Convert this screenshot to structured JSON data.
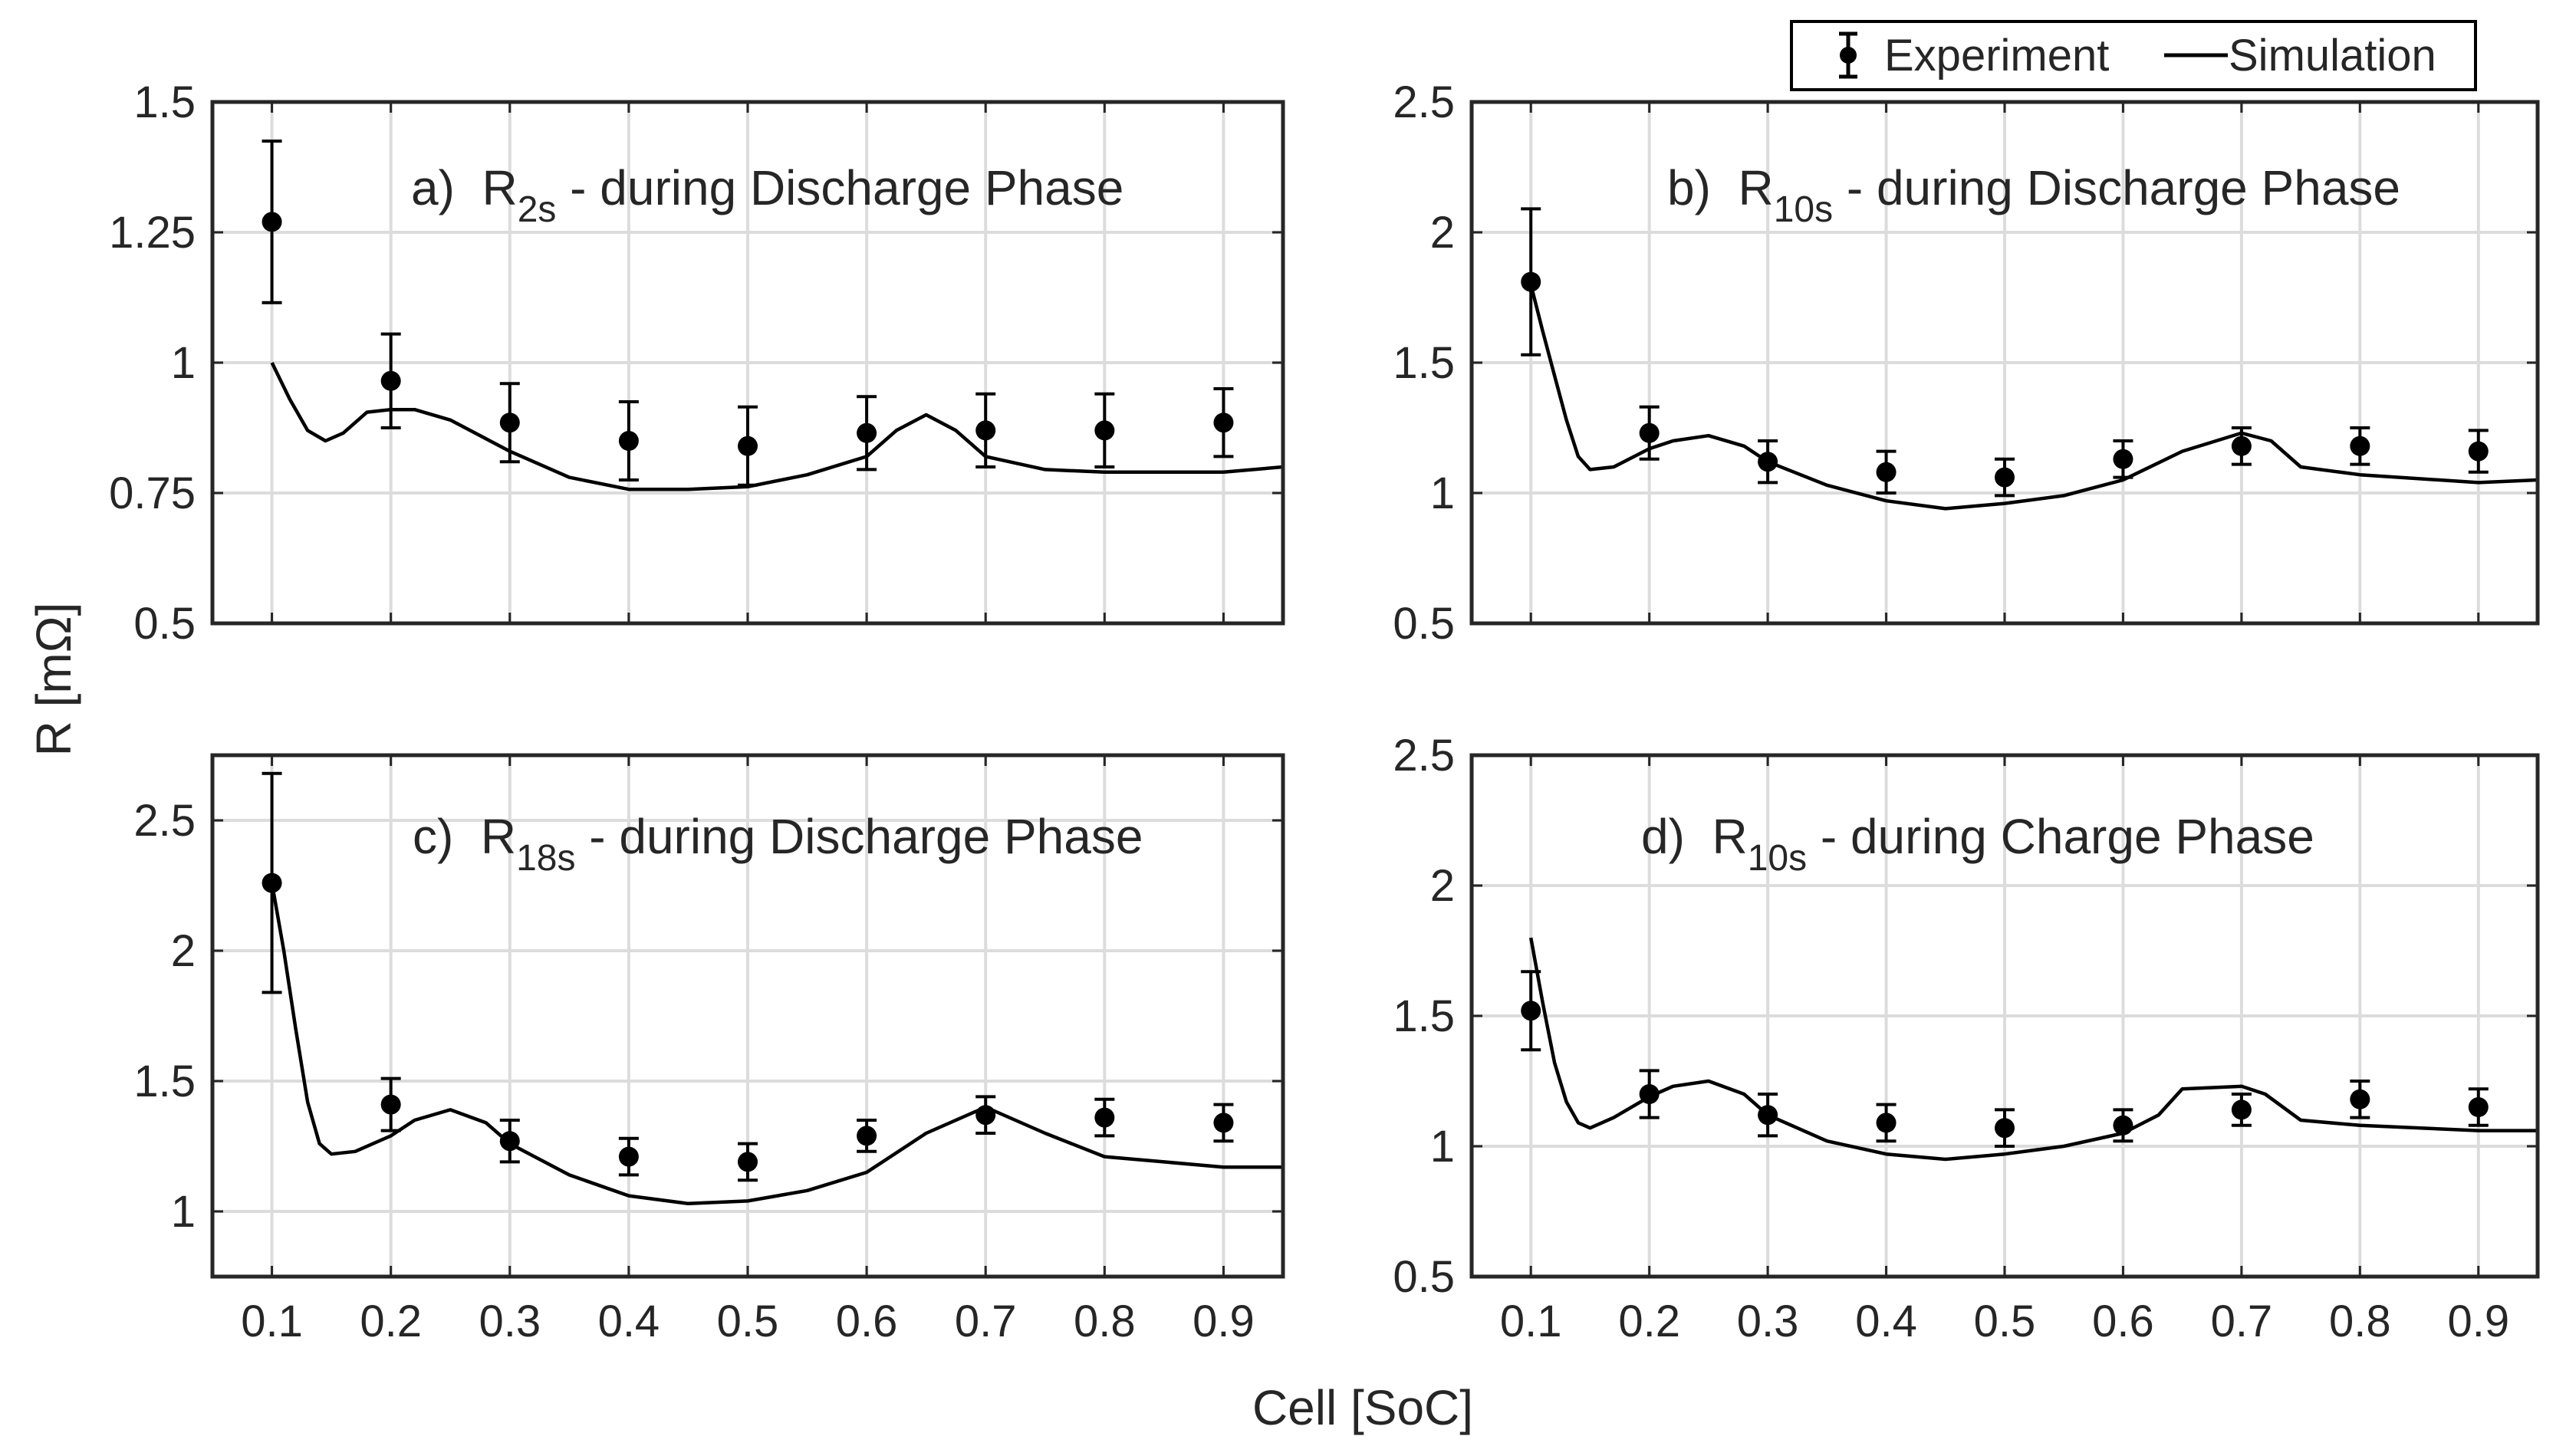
{
  "figure": {
    "y_axis_label": "R [mΩ]",
    "x_axis_label": "Cell [SoC]"
  },
  "legend": {
    "experiment_label": "Experiment",
    "simulation_label": "Simulation"
  },
  "chart_data": [
    {
      "type": "line",
      "id": "a",
      "title": "a)  R2s - during Discharge Phase",
      "title_prefix": "a)",
      "title_symbol": "R",
      "title_subscript": "2s",
      "title_suffix": "- during Discharge Phase",
      "xlim": [
        0.05,
        0.95
      ],
      "ylim": [
        0.5,
        1.5
      ],
      "xticks": [
        0.1,
        0.2,
        0.3,
        0.4,
        0.5,
        0.6,
        0.7,
        0.8,
        0.9
      ],
      "xtick_labels": [],
      "yticks": [
        0.5,
        0.75,
        1,
        1.25,
        1.5
      ],
      "ytick_labels": [
        "0.5",
        "0.75",
        "1",
        "1.25",
        "1.5"
      ],
      "series": [
        {
          "name": "Experiment",
          "x": [
            0.1,
            0.2,
            0.3,
            0.4,
            0.5,
            0.6,
            0.7,
            0.8,
            0.9
          ],
          "y": [
            1.27,
            0.965,
            0.885,
            0.85,
            0.84,
            0.865,
            0.87,
            0.87,
            0.885
          ],
          "err": [
            0.155,
            0.09,
            0.075,
            0.075,
            0.075,
            0.07,
            0.07,
            0.07,
            0.065
          ]
        },
        {
          "name": "Simulation",
          "x": [
            0.1,
            0.115,
            0.13,
            0.145,
            0.16,
            0.18,
            0.2,
            0.22,
            0.25,
            0.3,
            0.35,
            0.4,
            0.45,
            0.5,
            0.55,
            0.6,
            0.625,
            0.65,
            0.675,
            0.7,
            0.75,
            0.8,
            0.9,
            0.95
          ],
          "y": [
            1.0,
            0.93,
            0.87,
            0.85,
            0.865,
            0.905,
            0.91,
            0.91,
            0.89,
            0.83,
            0.78,
            0.757,
            0.757,
            0.762,
            0.785,
            0.82,
            0.87,
            0.9,
            0.87,
            0.82,
            0.795,
            0.79,
            0.79,
            0.8
          ]
        }
      ]
    },
    {
      "type": "line",
      "id": "b",
      "title": "b)  R10s - during Discharge Phase",
      "title_prefix": "b)",
      "title_symbol": "R",
      "title_subscript": "10s",
      "title_suffix": "- during Discharge Phase",
      "xlim": [
        0.05,
        0.95
      ],
      "ylim": [
        0.5,
        2.5
      ],
      "xticks": [
        0.1,
        0.2,
        0.3,
        0.4,
        0.5,
        0.6,
        0.7,
        0.8,
        0.9
      ],
      "xtick_labels": [],
      "yticks": [
        0.5,
        1,
        1.5,
        2,
        2.5
      ],
      "ytick_labels": [
        "0.5",
        "1",
        "1.5",
        "2",
        "2.5"
      ],
      "series": [
        {
          "name": "Experiment",
          "x": [
            0.1,
            0.2,
            0.3,
            0.4,
            0.5,
            0.6,
            0.7,
            0.8,
            0.9
          ],
          "y": [
            1.81,
            1.23,
            1.12,
            1.08,
            1.06,
            1.13,
            1.18,
            1.18,
            1.16
          ],
          "err": [
            0.28,
            0.1,
            0.08,
            0.08,
            0.07,
            0.07,
            0.07,
            0.07,
            0.08
          ]
        },
        {
          "name": "Simulation",
          "x": [
            0.1,
            0.11,
            0.12,
            0.13,
            0.14,
            0.15,
            0.17,
            0.2,
            0.22,
            0.25,
            0.28,
            0.3,
            0.35,
            0.4,
            0.45,
            0.5,
            0.55,
            0.6,
            0.65,
            0.7,
            0.725,
            0.75,
            0.8,
            0.9,
            0.95
          ],
          "y": [
            1.8,
            1.62,
            1.45,
            1.28,
            1.14,
            1.09,
            1.1,
            1.17,
            1.2,
            1.22,
            1.18,
            1.12,
            1.03,
            0.97,
            0.94,
            0.96,
            0.99,
            1.05,
            1.16,
            1.23,
            1.2,
            1.1,
            1.07,
            1.04,
            1.05
          ]
        }
      ]
    },
    {
      "type": "line",
      "id": "c",
      "title": "c)  R18s - during Discharge Phase",
      "title_prefix": "c)",
      "title_symbol": "R",
      "title_subscript": "18s",
      "title_suffix": "- during Discharge Phase",
      "xlim": [
        0.05,
        0.95
      ],
      "ylim": [
        0.75,
        2.75
      ],
      "xticks": [
        0.1,
        0.2,
        0.3,
        0.4,
        0.5,
        0.6,
        0.7,
        0.8,
        0.9
      ],
      "xtick_labels": [
        "0.1",
        "0.2",
        "0.3",
        "0.4",
        "0.5",
        "0.6",
        "0.7",
        "0.8",
        "0.9"
      ],
      "yticks": [
        1,
        1.5,
        2,
        2.5
      ],
      "ytick_labels": [
        "1",
        "1.5",
        "2",
        "2.5"
      ],
      "series": [
        {
          "name": "Experiment",
          "x": [
            0.1,
            0.2,
            0.3,
            0.4,
            0.5,
            0.6,
            0.7,
            0.8,
            0.9
          ],
          "y": [
            2.26,
            1.41,
            1.27,
            1.21,
            1.19,
            1.29,
            1.37,
            1.36,
            1.34
          ],
          "err": [
            0.42,
            0.1,
            0.08,
            0.07,
            0.07,
            0.06,
            0.07,
            0.07,
            0.07
          ]
        },
        {
          "name": "Simulation",
          "x": [
            0.1,
            0.11,
            0.12,
            0.13,
            0.14,
            0.15,
            0.17,
            0.2,
            0.22,
            0.25,
            0.28,
            0.3,
            0.35,
            0.4,
            0.45,
            0.5,
            0.55,
            0.6,
            0.65,
            0.7,
            0.75,
            0.8,
            0.85,
            0.9,
            0.95
          ],
          "y": [
            2.26,
            2.0,
            1.7,
            1.42,
            1.26,
            1.22,
            1.23,
            1.29,
            1.35,
            1.39,
            1.34,
            1.26,
            1.14,
            1.06,
            1.03,
            1.04,
            1.08,
            1.15,
            1.3,
            1.4,
            1.3,
            1.21,
            1.19,
            1.17,
            1.17
          ]
        }
      ]
    },
    {
      "type": "line",
      "id": "d",
      "title": "d)  R10s - during Charge Phase",
      "title_prefix": "d)",
      "title_symbol": "R",
      "title_subscript": "10s",
      "title_suffix": "- during Charge Phase",
      "xlim": [
        0.05,
        0.95
      ],
      "ylim": [
        0.5,
        2.5
      ],
      "xticks": [
        0.1,
        0.2,
        0.3,
        0.4,
        0.5,
        0.6,
        0.7,
        0.8,
        0.9
      ],
      "xtick_labels": [
        "0.1",
        "0.2",
        "0.3",
        "0.4",
        "0.5",
        "0.6",
        "0.7",
        "0.8",
        "0.9"
      ],
      "yticks": [
        0.5,
        1,
        1.5,
        2,
        2.5
      ],
      "ytick_labels": [
        "0.5",
        "1",
        "1.5",
        "2",
        "2.5"
      ],
      "series": [
        {
          "name": "Experiment",
          "x": [
            0.1,
            0.2,
            0.3,
            0.4,
            0.5,
            0.6,
            0.7,
            0.8,
            0.9
          ],
          "y": [
            1.52,
            1.2,
            1.12,
            1.09,
            1.07,
            1.08,
            1.14,
            1.18,
            1.15
          ],
          "err": [
            0.15,
            0.09,
            0.08,
            0.07,
            0.07,
            0.06,
            0.06,
            0.07,
            0.07
          ]
        },
        {
          "name": "Simulation",
          "x": [
            0.1,
            0.11,
            0.12,
            0.13,
            0.14,
            0.15,
            0.17,
            0.2,
            0.22,
            0.25,
            0.28,
            0.3,
            0.35,
            0.4,
            0.45,
            0.5,
            0.55,
            0.6,
            0.63,
            0.65,
            0.7,
            0.72,
            0.75,
            0.8,
            0.9,
            0.95
          ],
          "y": [
            1.8,
            1.55,
            1.32,
            1.17,
            1.09,
            1.07,
            1.11,
            1.19,
            1.23,
            1.25,
            1.2,
            1.12,
            1.02,
            0.97,
            0.95,
            0.97,
            1.0,
            1.05,
            1.12,
            1.22,
            1.23,
            1.2,
            1.1,
            1.08,
            1.06,
            1.06
          ]
        }
      ]
    }
  ]
}
